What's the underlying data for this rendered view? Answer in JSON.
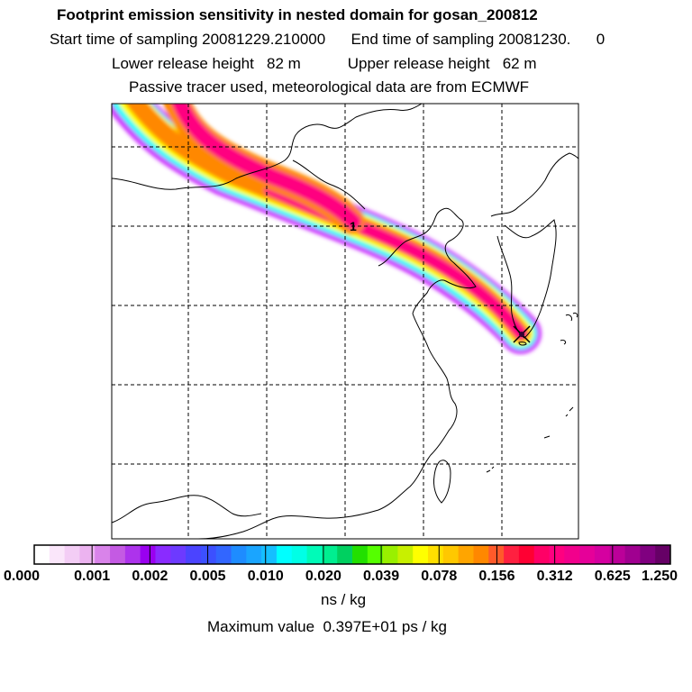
{
  "header": {
    "title": "Footprint emission sensitivity in nested domain for gosan_200812",
    "sampling": "Start time of sampling 20081229.210000      End time of sampling 20081230.      0",
    "release": "Lower release height   82 m           Upper release height   62 m",
    "tracer": "Passive tracer used, meteorological data are from ECMWF"
  },
  "map": {
    "release_marker_label": "1",
    "plume_colors": [
      "#cc33ff",
      "#00ffff",
      "#ffff00",
      "#ff8800",
      "#ff0080"
    ]
  },
  "colorbar": {
    "tick_labels": [
      "0.000",
      "0.001",
      "0.002",
      "0.005",
      "0.010",
      "0.020",
      "0.039",
      "0.078",
      "0.156",
      "0.312",
      "0.625",
      "1.250"
    ],
    "colors": [
      "#ffffff",
      "#fae6fa",
      "#f3cdf5",
      "#ecb3f0",
      "#d983ea",
      "#c45ae3",
      "#ad33ec",
      "#9a00f0",
      "#8a2bff",
      "#6d3aff",
      "#4b44ff",
      "#3c50ff",
      "#3266ff",
      "#1e8cff",
      "#1aa5ff",
      "#15bfff",
      "#00ffff",
      "#00ffe6",
      "#00fbb8",
      "#00ee90",
      "#00d060",
      "#22e000",
      "#55ff00",
      "#99f000",
      "#c8f000",
      "#ffff00",
      "#ffe000",
      "#ffc800",
      "#ffa500",
      "#ff8800",
      "#ff5a2a",
      "#ff2040",
      "#ff0033",
      "#ff0066",
      "#ff0080",
      "#f2008c",
      "#e60099",
      "#d500a0",
      "#bb0099",
      "#a00090",
      "#800080",
      "#660066"
    ],
    "units": "ns / kg",
    "maximum": "Maximum value  0.397E+01 ps / kg"
  }
}
